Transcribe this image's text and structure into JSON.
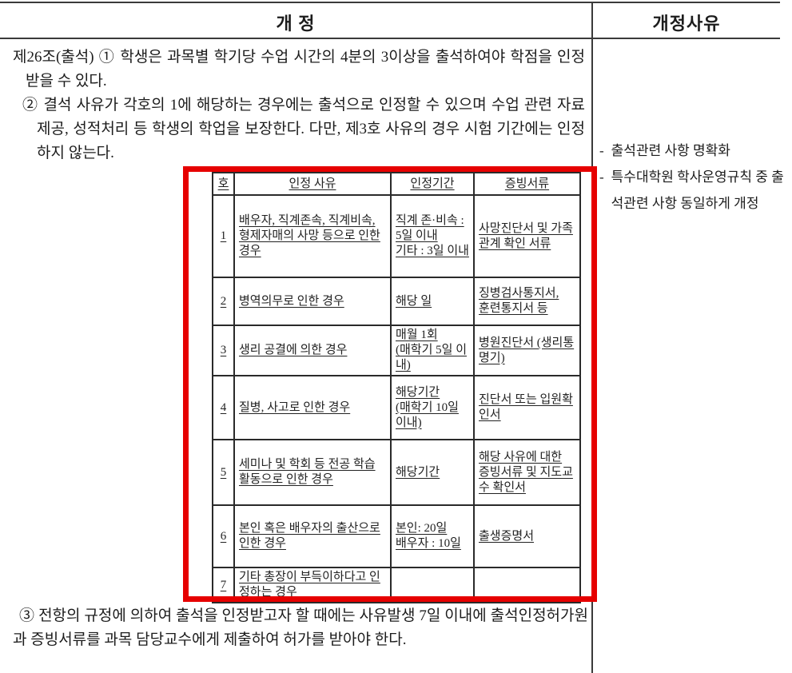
{
  "header": {
    "left_title": "개 정",
    "right_title": "개정사유"
  },
  "amendment": {
    "clause1": "제26조(출석) ① 학생은 과목별 학기당 수업 시간의 4분의 3이상을 출석하여야 학점을 인정 받을 수 있다.",
    "clause2": "② 결석 사유가 각호의 1에 해당하는 경우에는 출석으로 인정할 수 있으며 수업 관련 자료 제공, 성적처리 등 학생의 학업을 보장한다. 다만, 제3호 사유의 경우 시험 기간에는 인정하지 않는다.",
    "clause3": "③ 전항의 규정에 의하여 출석을 인정받고자 할 때에는 사유발생 7일 이내에 출석인정허가원과 증빙서류를 과목 담당교수에게 제출하여 허가를 받아야 한다."
  },
  "inner_table": {
    "headers": [
      "호",
      "인정 사유",
      "인정기간",
      "증빙서류"
    ],
    "rows": [
      {
        "no": "1",
        "reason": "배우자, 직계존속, 직계비속, 형제자매의 사망 등으로 인한 경우",
        "period": "직계 존·비속 : 5일 이내\n기타 : 3일 이내",
        "docs": "사망진단서 및 가족관계 확인 서류"
      },
      {
        "no": "2",
        "reason": "병역의무로 인한 경우",
        "period": "해당 일",
        "docs": "징병검사통지서,\n훈련통지서 등"
      },
      {
        "no": "3",
        "reason": "생리 공결에 의한 경우",
        "period": "매월 1회\n(매학기 5일 이내)",
        "docs": "병원진단서 (생리통 명기)"
      },
      {
        "no": "4",
        "reason": "질병, 사고로 인한 경우",
        "period": "해당기간\n(매학기 10일 이내)",
        "docs": "진단서 또는 입원확인서"
      },
      {
        "no": "5",
        "reason": "세미나 및 학회 등 전공 학습활동으로 인한 경우",
        "period": "해당기간",
        "docs": "해당 사유에 대한 증빙서류 및 지도교수 확인서"
      },
      {
        "no": "6",
        "reason": "본인 혹은 배우자의 출산으로 인한 경우",
        "period": "본인: 20일\n배우자 : 10일",
        "docs": "출생증명서"
      },
      {
        "no": "7",
        "reason": "기타 총장이 부득이하다고 인정하는 경우",
        "period": "",
        "docs": ""
      }
    ]
  },
  "reasons": {
    "items": [
      {
        "marker": "-",
        "text": "출석관련 사항 명확화"
      },
      {
        "marker": "-",
        "text": "특수대학원 학사운영규칙 중 출석관련 사항 동일하게 개정"
      }
    ]
  },
  "colors": {
    "highlight_box": "#e60000",
    "rule_lines": "#3a3a3a",
    "text": "#1c1c1c"
  }
}
